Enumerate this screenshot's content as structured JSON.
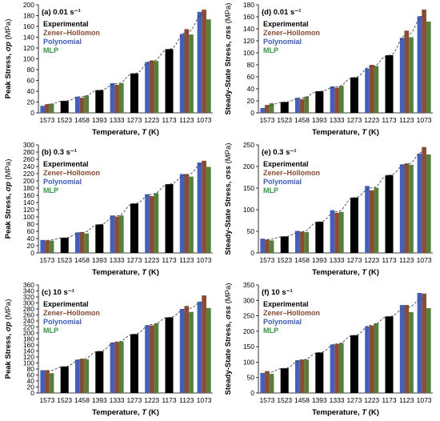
{
  "figure": {
    "xlabel_main": "Temperature, ",
    "xlabel_var": "T",
    "xlabel_unit": " (K)",
    "ylabel_peak_main": "Peak Stress, ",
    "ylabel_peak_var": "σp",
    "ylabel_peak_unit": " (MPa)",
    "ylabel_ss_main": "Steady-State Stress, ",
    "ylabel_ss_var": "σss",
    "ylabel_ss_unit": " (MPa)"
  },
  "legend": [
    {
      "name": "Experimental",
      "color": "#000000"
    },
    {
      "name": "Zener–Hollomon",
      "color": "#8B4A2F"
    },
    {
      "name": "Polynomial",
      "color": "#3A5BC7"
    },
    {
      "name": "MLP",
      "color": "#2E9E3E"
    }
  ],
  "colors": {
    "experimental": "#000000",
    "zener": "#8E4B30",
    "polynomial": "#3E5FC4",
    "mlp": "#55803A",
    "trend": "#444444"
  },
  "chart_data": [
    {
      "id": "a",
      "title": "(a) 0.01 s⁻¹",
      "type": "bar",
      "quantity": "peak",
      "categories": [
        "1573",
        "1523",
        "1458",
        "1393",
        "1333",
        "1273",
        "1223",
        "1173",
        "1123",
        "1073"
      ],
      "ylim": [
        0,
        200
      ],
      "yticks": [
        0,
        20,
        40,
        60,
        80,
        100,
        120,
        140,
        160,
        180,
        200
      ],
      "series": [
        {
          "name": "Experimental",
          "values": [
            null,
            22,
            null,
            42,
            null,
            73,
            null,
            118,
            null,
            null
          ]
        },
        {
          "name": "Polynomial",
          "values": [
            13,
            null,
            30,
            null,
            55,
            null,
            94,
            null,
            146,
            187
          ]
        },
        {
          "name": "Zener–Hollomon",
          "values": [
            16,
            null,
            28,
            null,
            52,
            null,
            97,
            null,
            155,
            191
          ]
        },
        {
          "name": "MLP",
          "values": [
            17,
            null,
            32,
            null,
            55,
            null,
            96,
            null,
            145,
            173
          ]
        }
      ]
    },
    {
      "id": "d",
      "title": "(d) 0.01 s⁻¹",
      "type": "bar",
      "quantity": "steady",
      "categories": [
        "1573",
        "1523",
        "1458",
        "1393",
        "1333",
        "1273",
        "1223",
        "1173",
        "1123",
        "1073"
      ],
      "ylim": [
        0,
        180
      ],
      "yticks": [
        0,
        20,
        40,
        60,
        80,
        100,
        120,
        140,
        160,
        180
      ],
      "series": [
        {
          "name": "Experimental",
          "values": [
            null,
            18,
            null,
            36,
            null,
            59,
            null,
            96,
            null,
            null
          ]
        },
        {
          "name": "Polynomial",
          "values": [
            8,
            null,
            25,
            null,
            44,
            null,
            74,
            null,
            125,
            161
          ]
        },
        {
          "name": "Zener–Hollomon",
          "values": [
            13,
            null,
            23,
            null,
            42,
            null,
            80,
            null,
            137,
            172
          ]
        },
        {
          "name": "MLP",
          "values": [
            16,
            null,
            27,
            null,
            45,
            null,
            78,
            null,
            126,
            152
          ]
        }
      ]
    },
    {
      "id": "b",
      "title": "(b) 0.3 s⁻¹",
      "type": "bar",
      "quantity": "peak",
      "categories": [
        "1573",
        "1523",
        "1458",
        "1393",
        "1333",
        "1273",
        "1223",
        "1173",
        "1123",
        "1073"
      ],
      "ylim": [
        0,
        300
      ],
      "yticks": [
        0,
        20,
        40,
        60,
        80,
        100,
        120,
        140,
        160,
        180,
        200,
        220,
        240,
        260,
        280,
        300
      ],
      "series": [
        {
          "name": "Experimental",
          "values": [
            null,
            42,
            null,
            79,
            null,
            137,
            null,
            191,
            null,
            null
          ]
        },
        {
          "name": "Polynomial",
          "values": [
            36,
            null,
            57,
            null,
            104,
            null,
            163,
            null,
            219,
            251
          ]
        },
        {
          "name": "Zener–Hollomon",
          "values": [
            35,
            null,
            58,
            null,
            101,
            null,
            158,
            null,
            219,
            256
          ]
        },
        {
          "name": "MLP",
          "values": [
            34,
            null,
            54,
            null,
            104,
            null,
            166,
            null,
            212,
            239
          ]
        }
      ]
    },
    {
      "id": "e",
      "title": "(e) 0.3 s⁻¹",
      "type": "bar",
      "quantity": "steady",
      "categories": [
        "1573",
        "1523",
        "1458",
        "1393",
        "1333",
        "1273",
        "1223",
        "1173",
        "1123",
        "1073"
      ],
      "ylim": [
        0,
        250
      ],
      "yticks": [
        0,
        50,
        100,
        150,
        200,
        250
      ],
      "series": [
        {
          "name": "Experimental",
          "values": [
            null,
            38,
            null,
            72,
            null,
            128,
            null,
            180,
            null,
            null
          ]
        },
        {
          "name": "Polynomial",
          "values": [
            33,
            null,
            51,
            null,
            99,
            null,
            155,
            null,
            205,
            230
          ]
        },
        {
          "name": "Zener–Hollomon",
          "values": [
            31,
            null,
            49,
            null,
            93,
            null,
            145,
            null,
            207,
            245
          ]
        },
        {
          "name": "MLP",
          "values": [
            29,
            null,
            48,
            null,
            95,
            null,
            151,
            null,
            204,
            228
          ]
        }
      ]
    },
    {
      "id": "c",
      "title": "(c) 10 s⁻¹",
      "type": "bar",
      "quantity": "peak",
      "categories": [
        "1573",
        "1523",
        "1458",
        "1393",
        "1333",
        "1273",
        "1223",
        "1173",
        "1123",
        "1073"
      ],
      "ylim": [
        0,
        360
      ],
      "yticks": [
        0,
        20,
        40,
        60,
        80,
        100,
        120,
        140,
        160,
        180,
        200,
        220,
        240,
        260,
        280,
        300,
        320,
        340,
        360
      ],
      "series": [
        {
          "name": "Experimental",
          "values": [
            null,
            88,
            null,
            139,
            null,
            196,
            null,
            252,
            null,
            null
          ]
        },
        {
          "name": "Polynomial",
          "values": [
            76,
            null,
            111,
            null,
            168,
            null,
            226,
            null,
            280,
            304
          ]
        },
        {
          "name": "Zener–Hollomon",
          "values": [
            76,
            null,
            114,
            null,
            170,
            null,
            225,
            null,
            290,
            325
          ]
        },
        {
          "name": "MLP",
          "values": [
            66,
            null,
            112,
            null,
            172,
            null,
            232,
            null,
            270,
            283
          ]
        }
      ]
    },
    {
      "id": "f",
      "title": "(f) 10 s⁻¹",
      "type": "bar",
      "quantity": "steady",
      "categories": [
        "1573",
        "1523",
        "1458",
        "1393",
        "1333",
        "1273",
        "1223",
        "1173",
        "1123",
        "1073"
      ],
      "ylim": [
        0,
        350
      ],
      "yticks": [
        0,
        50,
        100,
        150,
        200,
        250,
        300,
        350
      ],
      "series": [
        {
          "name": "Experimental",
          "values": [
            null,
            80,
            null,
            131,
            null,
            187,
            null,
            248,
            null,
            null
          ]
        },
        {
          "name": "Polynomial",
          "values": [
            65,
            null,
            106,
            null,
            157,
            null,
            216,
            null,
            285,
            324
          ]
        },
        {
          "name": "Zener–Hollomon",
          "values": [
            71,
            null,
            108,
            null,
            158,
            null,
            218,
            null,
            285,
            322
          ]
        },
        {
          "name": "MLP",
          "values": [
            62,
            null,
            108,
            null,
            162,
            null,
            226,
            null,
            262,
            275
          ]
        }
      ]
    }
  ]
}
